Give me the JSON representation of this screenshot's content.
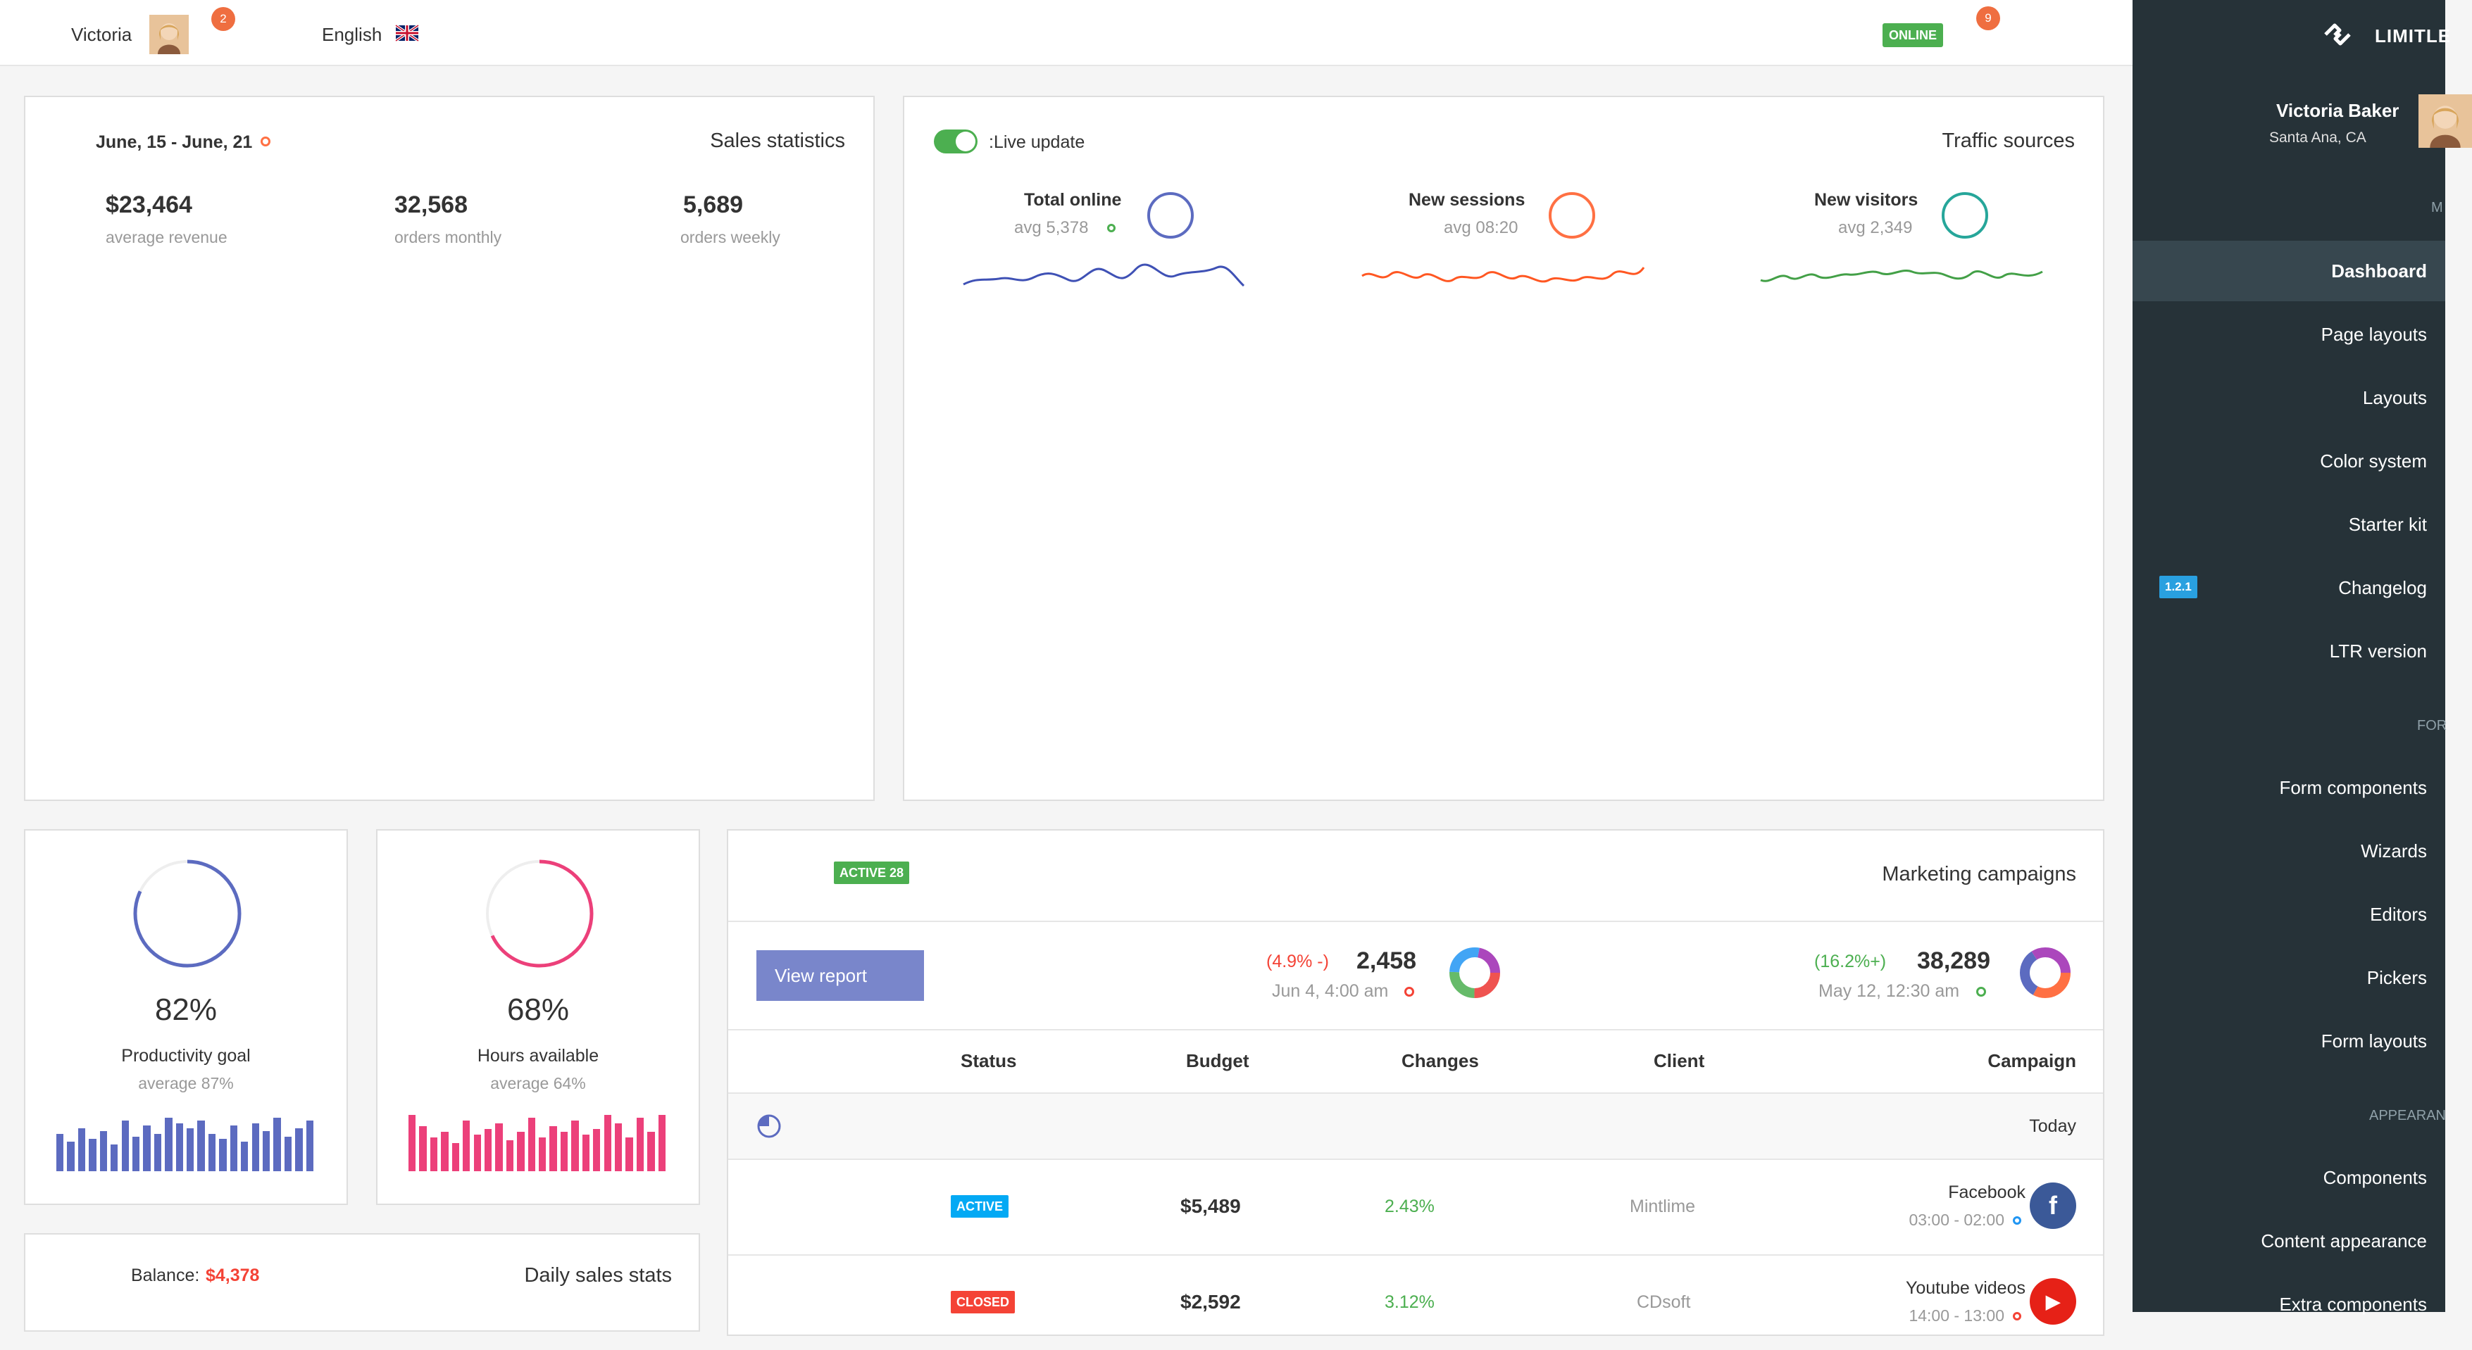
{
  "navbar": {
    "user_name": "Victoria",
    "user_badge": "2",
    "language": "English",
    "status": "ONLINE",
    "notif_badge": "9"
  },
  "sales_stats": {
    "date_range": "June, 15 - June, 21",
    "title": "Sales statistics",
    "stats": [
      {
        "value": "$23,464",
        "label": "average revenue"
      },
      {
        "value": "32,568",
        "label": "orders monthly"
      },
      {
        "value": "5,689",
        "label": "orders weekly"
      }
    ]
  },
  "traffic": {
    "toggle_label": ":Live update",
    "title": "Traffic sources",
    "items": [
      {
        "label": "Total online",
        "sub": "avg 5,378",
        "color": "#5c6bc0"
      },
      {
        "label": "New sessions",
        "sub": "avg 08:20",
        "color": "#ff7043"
      },
      {
        "label": "New visitors",
        "sub": "avg 2,349",
        "color": "#26a69a"
      }
    ]
  },
  "productivity": {
    "value": "82%",
    "label": "Productivity goal",
    "sub": "average 87%",
    "progress": 0.82,
    "color": "#5c6bc0",
    "bars": [
      0.7,
      0.55,
      0.8,
      0.6,
      0.75,
      0.5,
      0.95,
      0.65,
      0.85,
      0.7,
      1.0,
      0.9,
      0.8,
      0.95,
      0.7,
      0.6,
      0.85,
      0.55,
      0.9,
      0.75,
      1.0,
      0.65,
      0.8,
      0.95
    ]
  },
  "hours": {
    "value": "68%",
    "label": "Hours available",
    "sub": "average 64%",
    "progress": 0.68,
    "color": "#ec407a",
    "bars": [
      1.0,
      0.8,
      0.6,
      0.7,
      0.5,
      0.9,
      0.65,
      0.75,
      0.85,
      0.55,
      0.7,
      0.95,
      0.6,
      0.8,
      0.7,
      0.9,
      0.65,
      0.75,
      1.0,
      0.85,
      0.6,
      0.95,
      0.7,
      1.0
    ]
  },
  "balance": {
    "label": "Balance:",
    "value": "$4,378",
    "title": "Daily sales stats"
  },
  "marketing": {
    "active_label": "ACTIVE 28",
    "title": "Marketing campaigns",
    "view_report": "View report",
    "summary": [
      {
        "change": "(4.9% -)",
        "value": "2,458",
        "date": "Jun 4, 4:00 am",
        "change_color": "#f44336"
      },
      {
        "change": "(16.2%+)",
        "value": "38,289",
        "date": "May 12, 12:30 am",
        "change_color": "#4caf50"
      }
    ],
    "columns": [
      "Status",
      "Budget",
      "Changes",
      "Client",
      "Campaign"
    ],
    "group_label": "Today",
    "rows": [
      {
        "status": "ACTIVE",
        "status_color": "#03a9f4",
        "budget": "$5,489",
        "changes": "2.43%",
        "client": "Mintlime",
        "campaign": "Facebook",
        "time": "03:00 - 02:00",
        "icon": "facebook-icon",
        "icon_glyph": "f",
        "icon_color": "#3b5998"
      },
      {
        "status": "CLOSED",
        "status_color": "#f44336",
        "budget": "$2,592",
        "changes": "3.12%",
        "client": "CDsoft",
        "campaign": "Youtube videos",
        "time": "14:00 - 13:00",
        "icon": "youtube-icon",
        "icon_glyph": "▶",
        "icon_color": "#e62117"
      }
    ]
  },
  "sidebar": {
    "brand": "LIMITLE",
    "user_name": "Victoria Baker",
    "user_location": "Santa Ana, CA",
    "section_main": "M",
    "items": [
      {
        "label": "Dashboard",
        "active": true
      },
      {
        "label": "Page layouts"
      },
      {
        "label": "Layouts"
      },
      {
        "label": "Color system"
      },
      {
        "label": "Starter kit"
      },
      {
        "label": "Changelog",
        "badge": "1.2.1"
      },
      {
        "label": "LTR version"
      }
    ],
    "section_forms": "FOR",
    "forms": [
      "Form components",
      "Wizards",
      "Editors",
      "Pickers",
      "Form layouts"
    ],
    "section_appearance": "APPEARAN",
    "appearance": [
      "Components",
      "Content appearance",
      "Extra components"
    ]
  }
}
